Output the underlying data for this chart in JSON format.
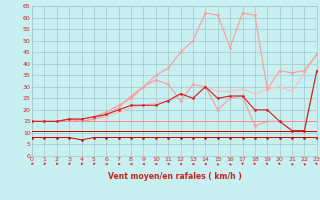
{
  "xlabel": "Vent moyen/en rafales ( km/h )",
  "xlim": [
    0,
    23
  ],
  "ylim": [
    0,
    65
  ],
  "yticks": [
    0,
    5,
    10,
    15,
    20,
    25,
    30,
    35,
    40,
    45,
    50,
    55,
    60,
    65
  ],
  "xticks": [
    0,
    1,
    2,
    3,
    4,
    5,
    6,
    7,
    8,
    9,
    10,
    11,
    12,
    13,
    14,
    15,
    16,
    17,
    18,
    19,
    20,
    21,
    22,
    23
  ],
  "bg_color": "#c8f0f0",
  "grid_color": "#a0c8c8",
  "lines": [
    {
      "y": [
        8,
        8,
        8,
        8,
        7,
        8,
        8,
        8,
        8,
        8,
        8,
        8,
        8,
        8,
        8,
        8,
        8,
        8,
        8,
        8,
        8,
        8,
        8,
        8
      ],
      "color": "#cc0000",
      "lw": 0.7,
      "marker": "o",
      "ms": 1.5,
      "zorder": 6
    },
    {
      "y": [
        11,
        11,
        11,
        11,
        11,
        11,
        11,
        11,
        11,
        11,
        11,
        11,
        11,
        11,
        11,
        11,
        11,
        11,
        11,
        11,
        11,
        11,
        11,
        11
      ],
      "color": "#cc0000",
      "lw": 0.7,
      "marker": "None",
      "ms": 0,
      "zorder": 6
    },
    {
      "y": [
        15,
        15,
        15,
        15,
        15,
        15,
        15,
        15,
        15,
        15,
        15,
        15,
        15,
        15,
        15,
        15,
        15,
        15,
        15,
        15,
        15,
        15,
        15,
        15
      ],
      "color": "#ff8888",
      "lw": 0.7,
      "marker": "None",
      "ms": 0,
      "zorder": 4
    },
    {
      "y": [
        15,
        15,
        15,
        15,
        15,
        16,
        17,
        19,
        21,
        22,
        23,
        24,
        27,
        25,
        30,
        28,
        28,
        29,
        27,
        29,
        30,
        28,
        36,
        44
      ],
      "color": "#ffbbbb",
      "lw": 0.8,
      "marker": "o",
      "ms": 1.5,
      "zorder": 3
    },
    {
      "y": [
        15,
        15,
        15,
        16,
        15,
        16,
        18,
        21,
        26,
        30,
        33,
        31,
        24,
        31,
        30,
        20,
        25,
        26,
        13,
        15,
        15,
        11,
        11,
        37
      ],
      "color": "#ff9999",
      "lw": 0.8,
      "marker": "o",
      "ms": 1.5,
      "zorder": 4
    },
    {
      "y": [
        15,
        15,
        15,
        16,
        16,
        17,
        18,
        20,
        22,
        22,
        22,
        24,
        27,
        25,
        30,
        25,
        26,
        26,
        20,
        20,
        15,
        11,
        11,
        37
      ],
      "color": "#cc2222",
      "lw": 0.8,
      "marker": "o",
      "ms": 1.5,
      "zorder": 5
    },
    {
      "y": [
        15,
        15,
        15,
        16,
        16,
        17,
        19,
        22,
        25,
        30,
        35,
        38,
        45,
        50,
        62,
        61,
        47,
        62,
        61,
        29,
        37,
        36,
        37,
        44
      ],
      "color": "#ff9999",
      "lw": 0.8,
      "marker": "o",
      "ms": 1.5,
      "zorder": 3
    }
  ],
  "arrow_dirs": [
    225,
    225,
    225,
    225,
    225,
    225,
    270,
    270,
    270,
    270,
    270,
    270,
    270,
    270,
    270,
    315,
    315,
    180,
    135,
    135,
    135,
    315,
    315,
    135
  ],
  "arrow_color": "#cc2222",
  "tick_color": "#cc2222",
  "xlabel_color": "#cc2222",
  "tick_fontsize": 4.5,
  "xlabel_fontsize": 5.5
}
